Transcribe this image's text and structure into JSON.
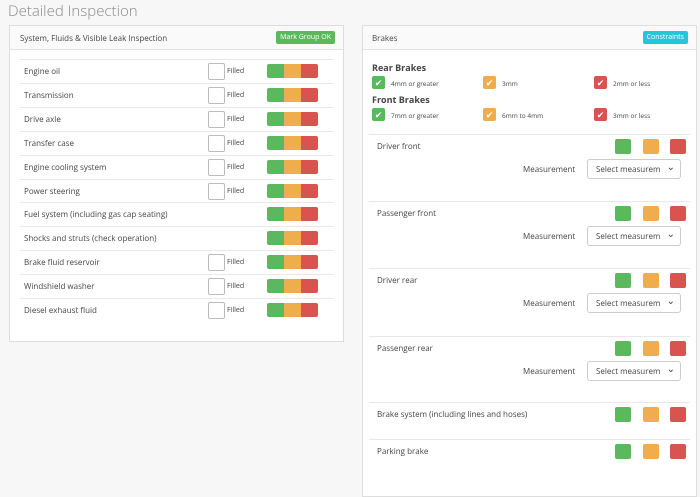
{
  "page_title": "Detailed Inspection",
  "left_panel": {
    "title": "System, Fluids & Visible Leak Inspection",
    "button": "Mark Group OK",
    "items": [
      {
        "label": "Engine oil",
        "checkbox": "Filled"
      },
      {
        "label": "Transmission",
        "checkbox": "Filled"
      },
      {
        "label": "Drive axle",
        "checkbox": "Filled"
      },
      {
        "label": "Transfer case",
        "checkbox": "Filled"
      },
      {
        "label": "Engine cooling system",
        "checkbox": "Filled"
      },
      {
        "label": "Power steering",
        "checkbox": "Filled"
      },
      {
        "label": "Fuel system (including gas cap seating)"
      },
      {
        "label": "Shocks and struts (check operation)"
      },
      {
        "label": "Brake fluid reservoir",
        "checkbox": "Filled"
      },
      {
        "label": "Windshield washer",
        "checkbox": "Filled"
      },
      {
        "label": "Diesel exhaust fluid",
        "checkbox": "Filled"
      }
    ]
  },
  "right_panel": {
    "title": "Brakes",
    "button": "Constraints",
    "legends": [
      {
        "title": "Rear Brakes",
        "items": [
          "4mm or greater",
          "3mm",
          "2mm or less"
        ]
      },
      {
        "title": "Front Brakes",
        "items": [
          "7mm or greater",
          "6mm to 4mm",
          "3mm or less"
        ]
      }
    ],
    "items": [
      {
        "label": "Driver front",
        "measurement": "Measurement",
        "select": "Select measurem"
      },
      {
        "label": "Passenger front",
        "measurement": "Measurement",
        "select": "Select measurem"
      },
      {
        "label": "Driver rear",
        "measurement": "Measurement",
        "select": "Select measurem"
      },
      {
        "label": "Passenger rear",
        "measurement": "Measurement",
        "select": "Select measurem"
      },
      {
        "label": "Brake system (including lines and hoses)"
      },
      {
        "label": "Parking brake"
      }
    ]
  }
}
